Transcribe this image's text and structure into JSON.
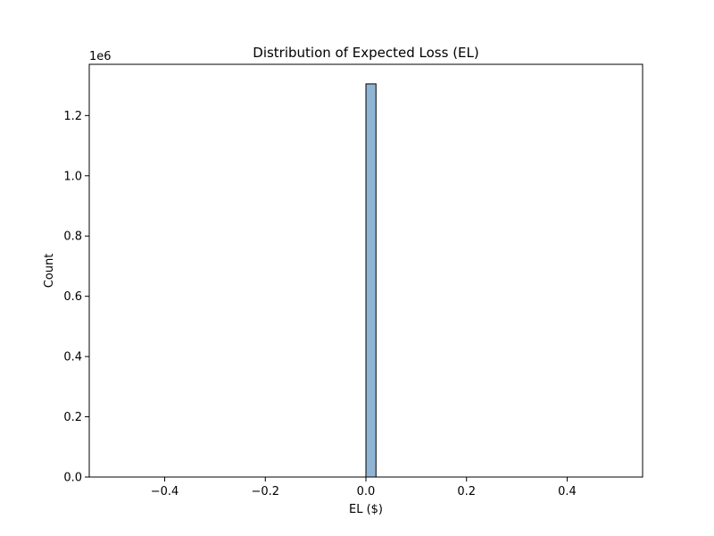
{
  "chart_data": {
    "type": "bar",
    "title": "Distribution of Expected Loss (EL)",
    "xlabel": "EL ($)",
    "ylabel": "Count",
    "y_offset_label": "1e6",
    "xlim": [
      -0.55,
      0.55
    ],
    "ylim": [
      0,
      1.37
    ],
    "x_ticks": [
      {
        "value": -0.4,
        "label": "−0.4"
      },
      {
        "value": -0.2,
        "label": "−0.2"
      },
      {
        "value": 0.0,
        "label": "0.0"
      },
      {
        "value": 0.2,
        "label": "0.2"
      },
      {
        "value": 0.4,
        "label": "0.4"
      }
    ],
    "y_ticks": [
      {
        "value": 0.0,
        "label": "0.0"
      },
      {
        "value": 0.2,
        "label": "0.2"
      },
      {
        "value": 0.4,
        "label": "0.4"
      },
      {
        "value": 0.6,
        "label": "0.6"
      },
      {
        "value": 0.8,
        "label": "0.8"
      },
      {
        "value": 1.0,
        "label": "1.0"
      },
      {
        "value": 1.2,
        "label": "1.2"
      }
    ],
    "bins": [
      {
        "x0": 0.0,
        "x1": 0.02,
        "count": 1.305
      }
    ],
    "grid": false,
    "colors": {
      "bar_fill": "#8fb4d4",
      "bar_edge": "#000000"
    }
  }
}
